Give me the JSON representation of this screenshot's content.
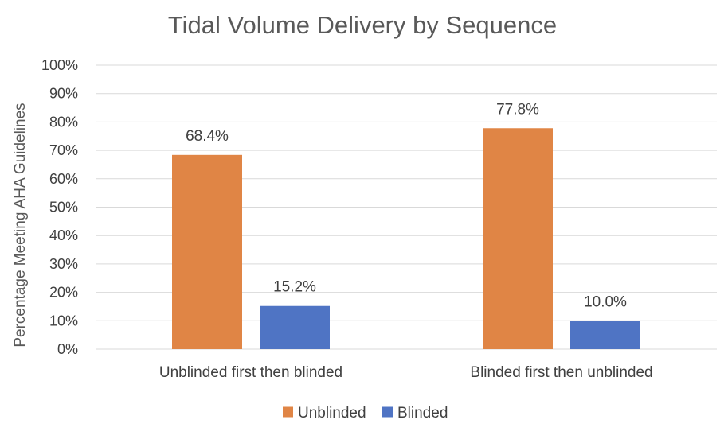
{
  "chart_data": {
    "type": "bar",
    "title": "Tidal Volume Delivery by Sequence",
    "xlabel": "",
    "ylabel": "Percentage Meeting AHA Guidelines",
    "categories": [
      "Unblinded first then blinded",
      "Blinded first then unblinded"
    ],
    "series": [
      {
        "name": "Unblinded",
        "color": "#E08545",
        "values": [
          68.4,
          77.8
        ],
        "labels": [
          "68.4%",
          "77.8%"
        ]
      },
      {
        "name": "Blinded",
        "color": "#4F74C4",
        "values": [
          15.2,
          10.0
        ],
        "labels": [
          "15.2%",
          "10.0%"
        ]
      }
    ],
    "ylim": [
      0,
      100
    ],
    "yticks": [
      "0%",
      "10%",
      "20%",
      "30%",
      "40%",
      "50%",
      "60%",
      "70%",
      "80%",
      "90%",
      "100%"
    ],
    "grid": true,
    "legend_position": "bottom"
  }
}
